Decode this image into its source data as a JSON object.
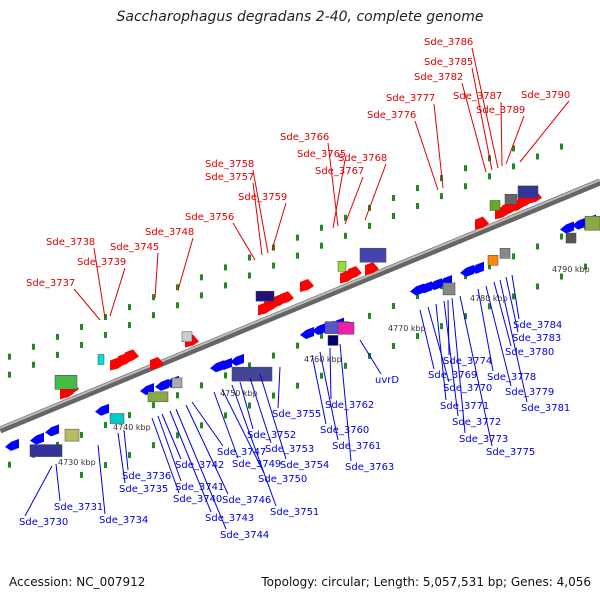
{
  "title": "Saccharophagus degradans 2-40, complete genome",
  "accession": "Accession: NC_007912",
  "info": "Topology: circular; Length: 5,057,531 bp; Genes: 4,056",
  "kbp_labels": [
    "4730 kbp",
    "4740 kbp",
    "4750 kbp",
    "4760 kbp",
    "4770 kbp",
    "4780 kbp",
    "4790 kbp"
  ],
  "top_genes": [
    "Sde_3737",
    "Sde_3738",
    "Sde_3739",
    "Sde_3745",
    "Sde_3748",
    "Sde_3756",
    "Sde_3757",
    "Sde_3758",
    "Sde_3759",
    "Sde_3765",
    "Sde_3766",
    "Sde_3767",
    "Sde_3768",
    "Sde_3776",
    "Sde_3777",
    "Sde_3782",
    "Sde_3785",
    "Sde_3786",
    "Sde_3787",
    "Sde_3789",
    "Sde_3790"
  ],
  "bottom_genes": [
    "Sde_3730",
    "Sde_3731",
    "Sde_3734",
    "Sde_3735",
    "Sde_3736",
    "Sde_3740",
    "Sde_3741",
    "Sde_3742",
    "Sde_3743",
    "Sde_3744",
    "Sde_3746",
    "Sde_3747",
    "Sde_3749",
    "Sde_3750",
    "Sde_3751",
    "Sde_3752",
    "Sde_3753",
    "Sde_3754",
    "Sde_3755",
    "Sde_3760",
    "Sde_3761",
    "Sde_3762",
    "Sde_3763",
    "uvrD",
    "Sde_3769",
    "Sde_3770",
    "Sde_3771",
    "Sde_3772",
    "Sde_3773",
    "Sde_3774",
    "Sde_3775",
    "Sde_3778",
    "Sde_3779",
    "Sde_3780",
    "Sde_3781",
    "Sde_3783",
    "Sde_3784"
  ],
  "colors": {
    "forward": "#ff0000",
    "reverse": "#0000ff",
    "backbone": "#888888",
    "tick": "#228822"
  }
}
